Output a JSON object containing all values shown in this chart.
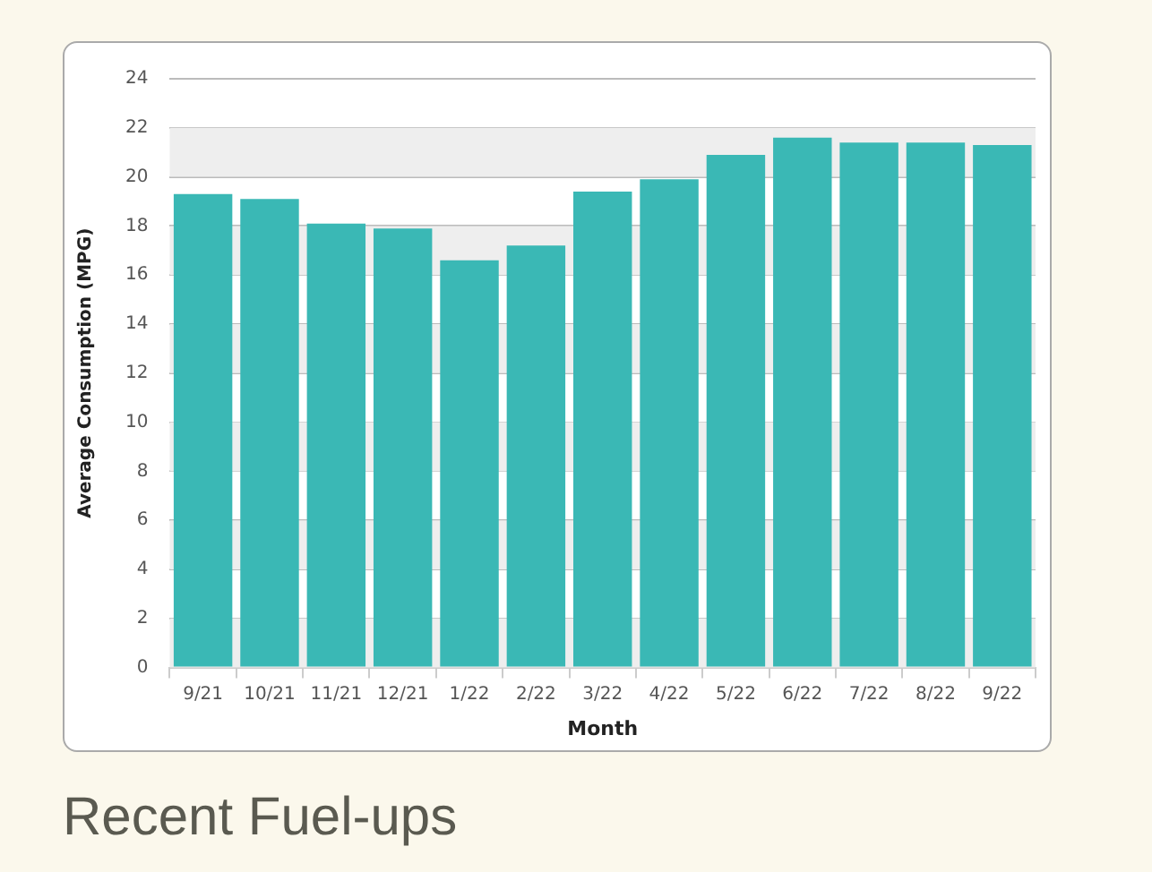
{
  "chart_data": {
    "type": "bar",
    "xlabel": "Month",
    "ylabel": "Average Consumption (MPG)",
    "categories": [
      "9/21",
      "10/21",
      "11/21",
      "12/21",
      "1/22",
      "2/22",
      "3/22",
      "4/22",
      "5/22",
      "6/22",
      "7/22",
      "8/22",
      "9/22"
    ],
    "values": [
      19.3,
      19.1,
      18.1,
      17.9,
      16.6,
      17.2,
      19.4,
      19.9,
      20.9,
      21.6,
      21.4,
      21.4,
      21.3
    ],
    "color": "#3ab8b5",
    "ylim": [
      0,
      24
    ],
    "yticks": [
      0,
      2,
      4,
      6,
      8,
      10,
      12,
      14,
      16,
      18,
      20,
      22,
      24
    ],
    "grid": "y",
    "legend": false,
    "bands": [
      {
        "axis": "y",
        "from": 0,
        "to": 2,
        "color": "#eeeeee"
      },
      {
        "axis": "y",
        "from": 4,
        "to": 6,
        "color": "#eeeeee"
      },
      {
        "axis": "y",
        "from": 8,
        "to": 10,
        "color": "#eeeeee"
      },
      {
        "axis": "y",
        "from": 12,
        "to": 14,
        "color": "#eeeeee"
      },
      {
        "axis": "y",
        "from": 16,
        "to": 18,
        "color": "#eeeeee"
      },
      {
        "axis": "y",
        "from": 20,
        "to": 22,
        "color": "#eeeeee"
      }
    ],
    "annotations": [
      "Recent Fuel-ups"
    ]
  }
}
